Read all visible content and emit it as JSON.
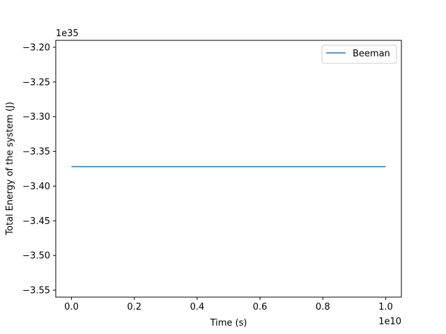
{
  "chart_data": {
    "type": "line",
    "xlabel": "Time (s)",
    "ylabel": "Total Energy of the system (J)",
    "x_offset_text": "1e10",
    "y_offset_text": "1e35",
    "xlim": [
      -0.05,
      1.05
    ],
    "ylim": [
      -3.56,
      -3.19
    ],
    "x_ticks": [
      0.0,
      0.2,
      0.4,
      0.6,
      0.8,
      1.0
    ],
    "x_tick_labels": [
      "0.0",
      "0.2",
      "0.4",
      "0.6",
      "0.8",
      "1.0"
    ],
    "y_ticks": [
      -3.2,
      -3.25,
      -3.3,
      -3.35,
      -3.4,
      -3.45,
      -3.5,
      -3.55
    ],
    "y_tick_labels": [
      "−3.20",
      "−3.25",
      "−3.30",
      "−3.35",
      "−3.40",
      "−3.45",
      "−3.50",
      "−3.55"
    ],
    "grid": false,
    "legend_position": "top-right",
    "series": [
      {
        "name": "Beeman",
        "color": "#1f77b4",
        "x": [
          0.0,
          0.25,
          0.5,
          0.75,
          1.0
        ],
        "y": [
          -3.372,
          -3.372,
          -3.372,
          -3.372,
          -3.372
        ]
      }
    ]
  }
}
